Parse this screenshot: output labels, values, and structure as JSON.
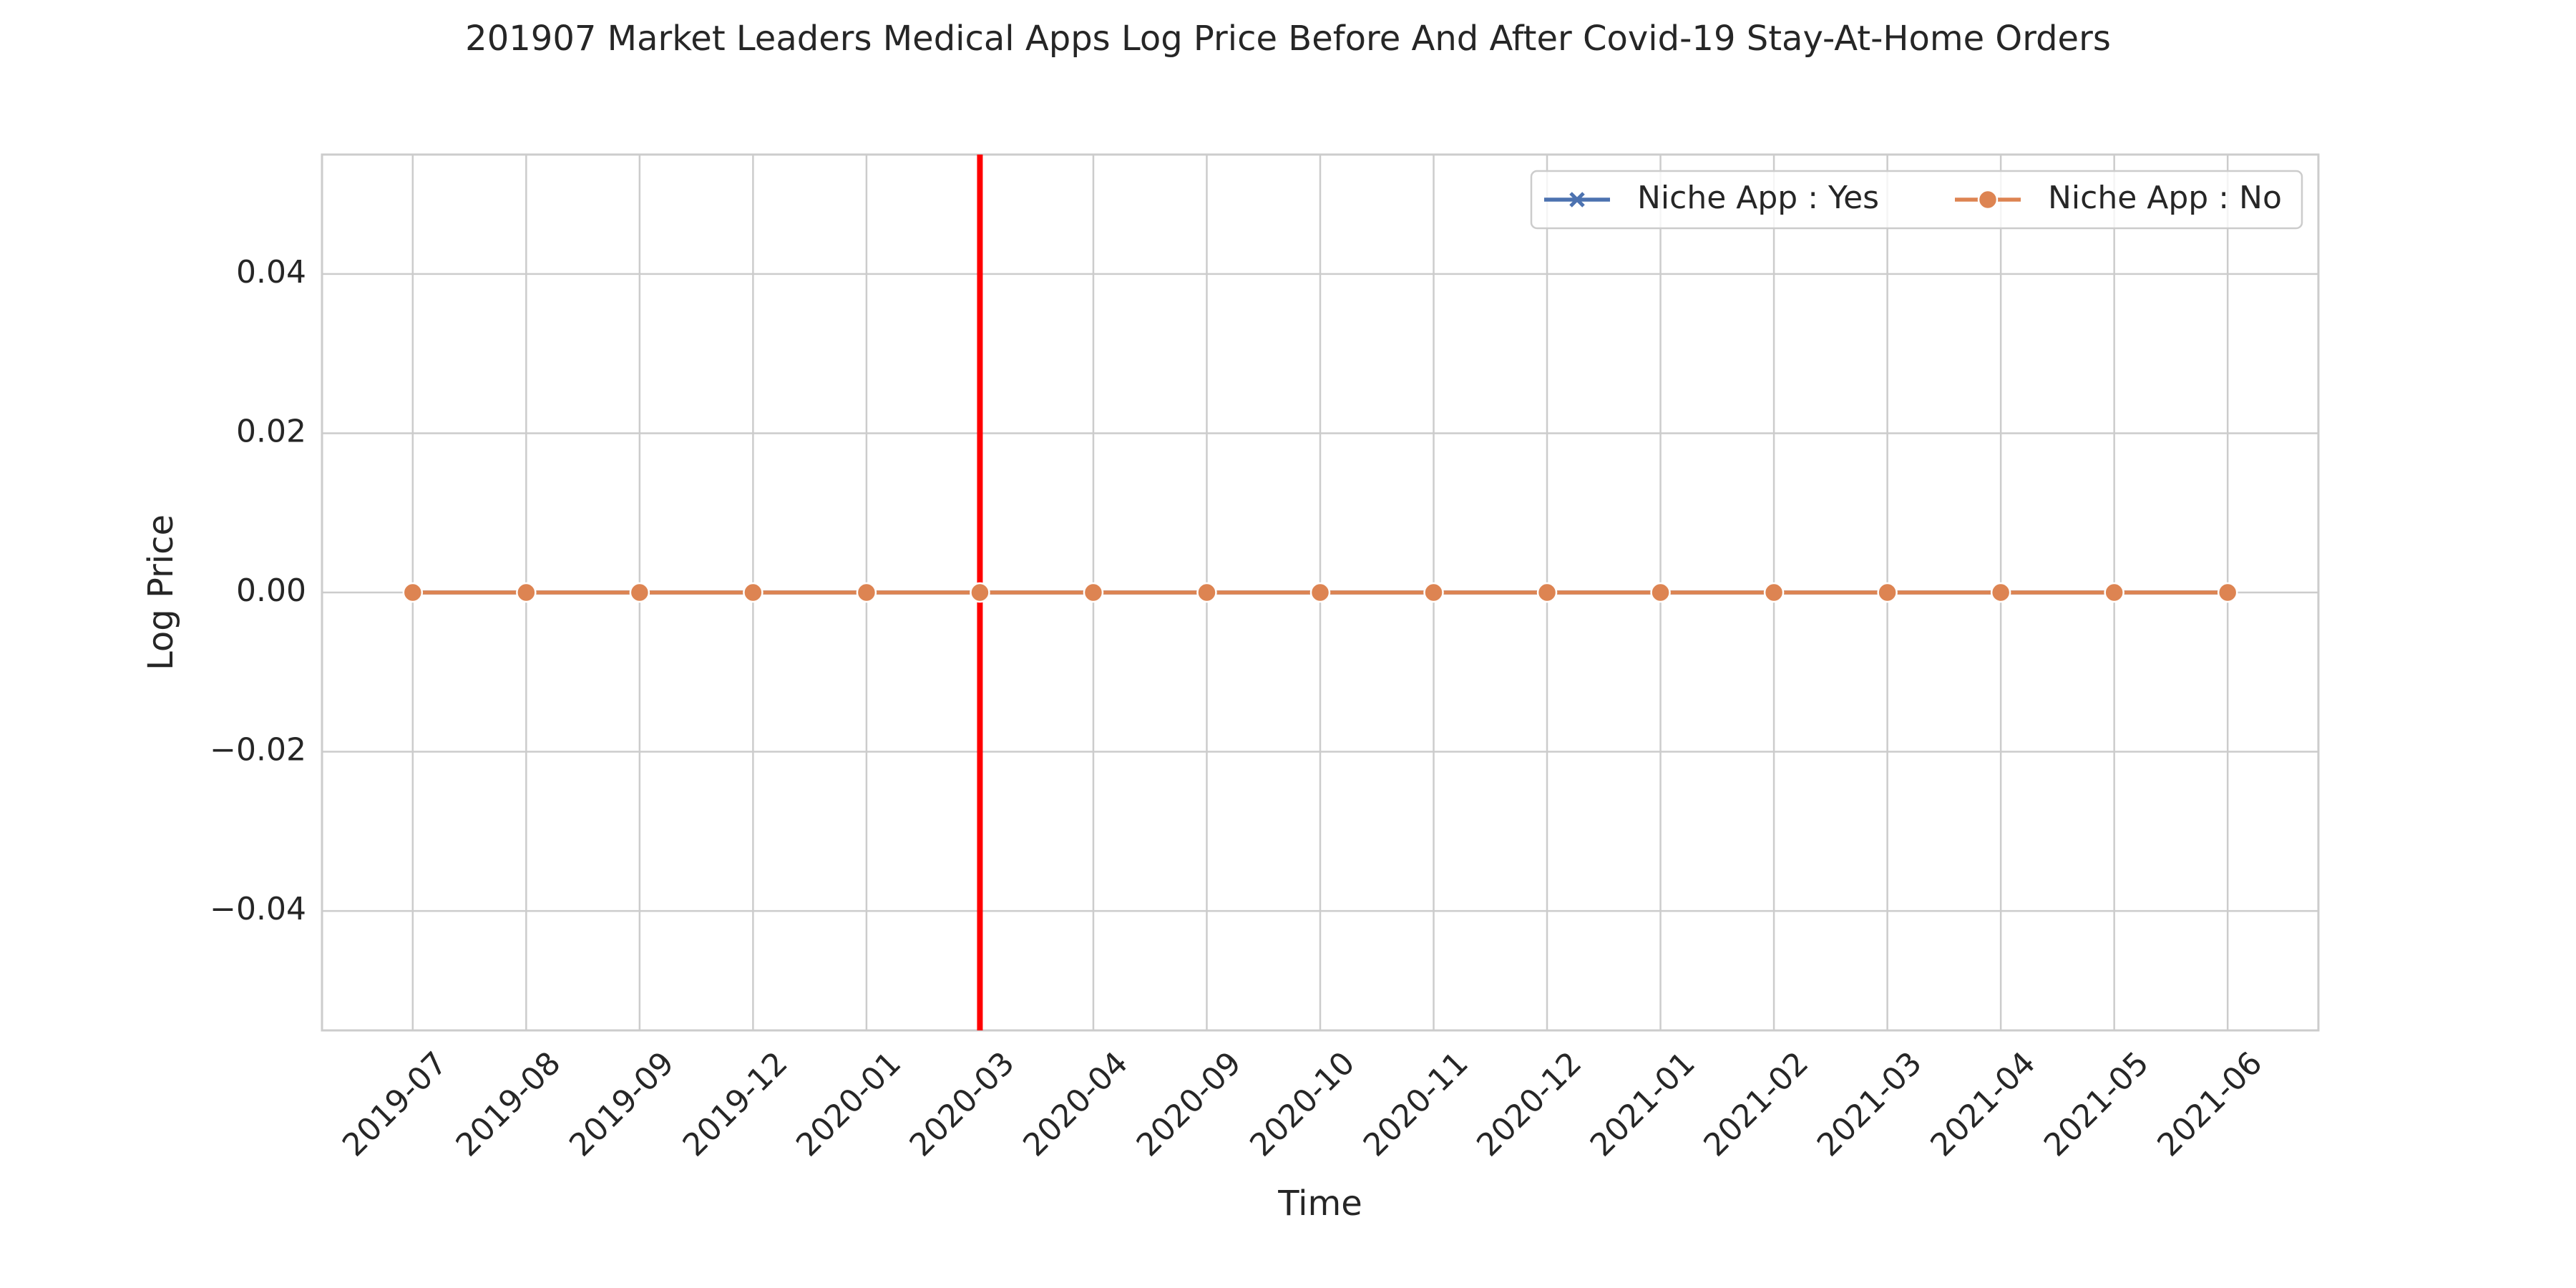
{
  "chart_data": {
    "type": "line",
    "title": "201907 Market Leaders Medical Apps Log Price Before And After Covid-19 Stay-At-Home Orders",
    "xlabel": "Time",
    "ylabel": "Log Price",
    "categories": [
      "2019-07",
      "2019-08",
      "2019-09",
      "2019-12",
      "2020-01",
      "2020-03",
      "2020-04",
      "2020-09",
      "2020-10",
      "2020-11",
      "2020-12",
      "2021-01",
      "2021-02",
      "2021-03",
      "2021-04",
      "2021-05",
      "2021-06"
    ],
    "series": [
      {
        "name": "Niche App : Yes",
        "color": "#4c72b0",
        "marker": "x",
        "values": [
          0,
          0,
          0,
          0,
          0,
          0,
          0,
          0,
          0,
          0,
          0,
          0,
          0,
          0,
          0,
          0,
          0
        ]
      },
      {
        "name": "Niche App : No",
        "color": "#dd8452",
        "marker": "o",
        "values": [
          0,
          0,
          0,
          0,
          0,
          0,
          0,
          0,
          0,
          0,
          0,
          0,
          0,
          0,
          0,
          0,
          0
        ]
      }
    ],
    "vline": {
      "x": "2020-03",
      "color": "#ff0000"
    },
    "ylim": [
      -0.055,
      0.055
    ],
    "yticks": [
      {
        "value": -0.04,
        "label": "−0.04"
      },
      {
        "value": -0.02,
        "label": "−0.02"
      },
      {
        "value": 0,
        "label": "0.00"
      },
      0.02,
      0.04
    ],
    "grid": true,
    "legend": "upper right"
  }
}
